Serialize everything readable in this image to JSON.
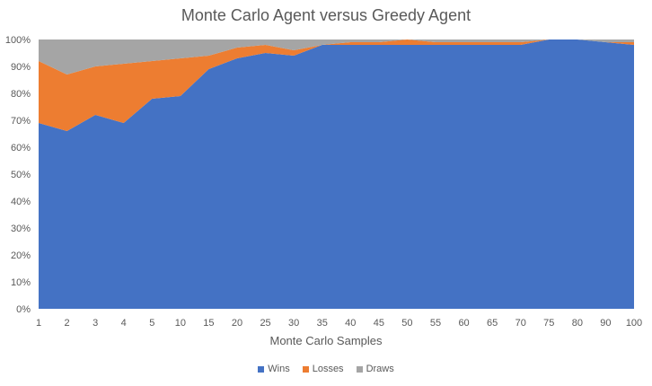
{
  "chart_data": {
    "type": "area",
    "stacked": "percent",
    "title": "Monte Carlo Agent versus Greedy Agent",
    "xlabel": "Monte Carlo Samples",
    "ylabel": "",
    "categories": [
      "1",
      "2",
      "3",
      "4",
      "5",
      "10",
      "15",
      "20",
      "25",
      "30",
      "35",
      "40",
      "45",
      "50",
      "55",
      "60",
      "65",
      "70",
      "75",
      "80",
      "90",
      "100"
    ],
    "ylim": [
      0,
      100
    ],
    "y_ticks": [
      "0%",
      "10%",
      "20%",
      "30%",
      "40%",
      "50%",
      "60%",
      "70%",
      "80%",
      "90%",
      "100%"
    ],
    "grid": false,
    "legend_position": "bottom",
    "series": [
      {
        "name": "Wins",
        "color": "#4472C4",
        "values": [
          69,
          66,
          72,
          69,
          78,
          79,
          89,
          93,
          95,
          94,
          98,
          98,
          98,
          98,
          98,
          98,
          98,
          98,
          100,
          100,
          99,
          98
        ]
      },
      {
        "name": "Losses",
        "color": "#ED7D31",
        "values": [
          23,
          21,
          18,
          22,
          14,
          14,
          5,
          4,
          3,
          2,
          0,
          1,
          1,
          2,
          1,
          1,
          1,
          1,
          0,
          0,
          0,
          1
        ]
      },
      {
        "name": "Draws",
        "color": "#A5A5A5",
        "values": [
          8,
          13,
          10,
          9,
          8,
          7,
          6,
          3,
          2,
          4,
          2,
          1,
          1,
          0,
          1,
          1,
          1,
          1,
          0,
          0,
          1,
          1
        ]
      }
    ]
  }
}
